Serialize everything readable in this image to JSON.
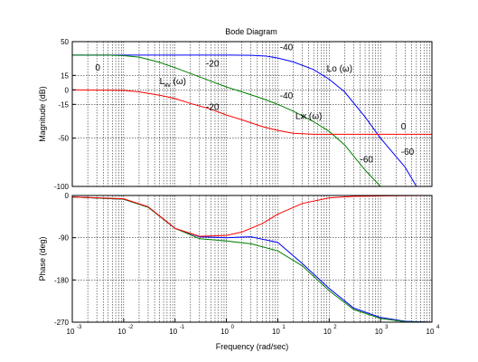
{
  "chart_data": [
    {
      "type": "line",
      "title": "Bode Diagram",
      "ylabel": "Magnitude (dB)",
      "xscale": "log",
      "xlim": [
        0.001,
        10000
      ],
      "ylim": [
        -100,
        50
      ],
      "yticks": [
        50,
        15,
        0,
        -15,
        -50,
        -100
      ],
      "grid": true,
      "series": [
        {
          "name": "Lo (ω)",
          "color": "#0000ff",
          "x": [
            0.001,
            0.1,
            1,
            3,
            6,
            10,
            20,
            50,
            100,
            200,
            500,
            1000,
            3000,
            5000
          ],
          "y": [
            36,
            36,
            36,
            35.8,
            35,
            33,
            29,
            21,
            11,
            -2,
            -28,
            -50,
            -80,
            -100
          ]
        },
        {
          "name": "Lж (ω)",
          "color": "#008000",
          "x": [
            0.001,
            0.005,
            0.01,
            0.02,
            0.05,
            0.1,
            0.2,
            0.5,
            1,
            2,
            5,
            10,
            20,
            50,
            100,
            200,
            500,
            1000
          ],
          "y": [
            36,
            36,
            35.5,
            34,
            28.5,
            23,
            17,
            9,
            3,
            -2,
            -9,
            -15,
            -22,
            -33,
            -43,
            -57,
            -83,
            -100
          ]
        },
        {
          "name": "Lкv (ω)",
          "color": "#ff0000",
          "x": [
            0.001,
            0.01,
            0.02,
            0.05,
            0.1,
            0.2,
            0.5,
            1,
            2,
            5,
            10,
            20,
            50,
            100,
            1000,
            10000
          ],
          "y": [
            0,
            -0.5,
            -2,
            -5.5,
            -9,
            -14,
            -20,
            -26,
            -31,
            -38,
            -42,
            -45,
            -46,
            -46,
            -46,
            -46
          ]
        }
      ],
      "annotations": [
        {
          "text": "0",
          "x": 0.0028,
          "y": 20
        },
        {
          "text": "-20",
          "x": 0.4,
          "y": 24
        },
        {
          "text": "-40",
          "x": 11,
          "y": 41
        },
        {
          "text": "Lo (ω)",
          "x": 90,
          "y": 19
        },
        {
          "text": "-20",
          "x": 0.4,
          "y": -21
        },
        {
          "text": "-40",
          "x": 11,
          "y": -9
        },
        {
          "text": "Lж (ω)",
          "x": 22,
          "y": -30
        },
        {
          "text": "0",
          "x": 2500,
          "y": -41
        },
        {
          "text": "-60",
          "x": 400,
          "y": -75
        },
        {
          "text": "-60",
          "x": 2500,
          "y": -67
        },
        {
          "text": "L",
          "x": 0.05,
          "y": 6,
          "subscript": "кv",
          "suffix": "(ω)"
        }
      ]
    },
    {
      "type": "line",
      "xlabel": "Frequency  (rad/sec)",
      "ylabel": "Phase (deg)",
      "xscale": "log",
      "xlim": [
        0.001,
        10000
      ],
      "ylim": [
        -270,
        0
      ],
      "yticks": [
        0,
        -90,
        -180,
        -270
      ],
      "xticks": [
        0.001,
        0.01,
        0.1,
        1,
        10,
        100,
        1000,
        10000
      ],
      "grid": true,
      "series": [
        {
          "color": "#0000ff",
          "x": [
            0.001,
            0.01,
            0.03,
            0.1,
            0.3,
            1,
            3,
            10,
            30,
            100,
            300,
            1000,
            3000,
            10000
          ],
          "y": [
            -3,
            -8,
            -25,
            -70,
            -88,
            -90,
            -88,
            -100,
            -145,
            -198,
            -240,
            -260,
            -268,
            -270
          ]
        },
        {
          "color": "#008000",
          "x": [
            0.001,
            0.01,
            0.03,
            0.1,
            0.3,
            1,
            3,
            10,
            30,
            100,
            300,
            1000,
            3000,
            10000
          ],
          "y": [
            -3,
            -8,
            -25,
            -70,
            -92,
            -97,
            -103,
            -118,
            -150,
            -203,
            -243,
            -262,
            -269,
            -270
          ]
        },
        {
          "color": "#ff0000",
          "x": [
            0.001,
            0.01,
            0.03,
            0.1,
            0.3,
            1,
            2,
            5,
            10,
            30,
            100,
            300,
            1000,
            10000
          ],
          "y": [
            -3,
            -7,
            -24,
            -70,
            -87,
            -85,
            -78,
            -60,
            -40,
            -17,
            -5,
            -2,
            -1,
            0
          ]
        }
      ]
    }
  ]
}
